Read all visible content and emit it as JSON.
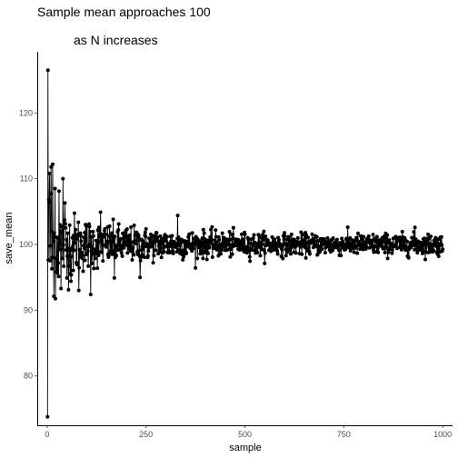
{
  "chart_data": {
    "type": "line",
    "title_line1": "Sample mean approaches 100",
    "title_line2": "as N increases",
    "xlabel": "sample",
    "ylabel": "save_mean",
    "xlim": [
      -25,
      1025
    ],
    "ylim": [
      72.5,
      129.3
    ],
    "x_ticks": [
      0,
      250,
      500,
      750,
      1000
    ],
    "y_ticks": [
      80,
      90,
      100,
      110,
      120
    ],
    "grid": false,
    "markers": true,
    "n_points": 1000,
    "series": [
      {
        "highlighted_points": [
          {
            "x": 1,
            "y": 73.8
          },
          {
            "x": 2,
            "y": 126.5
          },
          {
            "x": 4,
            "y": 106.8
          },
          {
            "x": 6,
            "y": 110.8
          },
          {
            "x": 8,
            "y": 99.8
          },
          {
            "x": 10,
            "y": 111.8
          },
          {
            "x": 12,
            "y": 96.3
          },
          {
            "x": 14,
            "y": 112.2
          },
          {
            "x": 17,
            "y": 92.1
          },
          {
            "x": 20,
            "y": 108.5
          },
          {
            "x": 25,
            "y": 96.1
          },
          {
            "x": 30,
            "y": 108.1
          },
          {
            "x": 35,
            "y": 93.3
          },
          {
            "x": 40,
            "y": 110.0
          },
          {
            "x": 45,
            "y": 106.3
          },
          {
            "x": 50,
            "y": 94.9
          },
          {
            "x": 60,
            "y": 94.4
          },
          {
            "x": 80,
            "y": 93.0
          },
          {
            "x": 95,
            "y": 101.8
          },
          {
            "x": 110,
            "y": 92.4
          },
          {
            "x": 135,
            "y": 104.9
          },
          {
            "x": 170,
            "y": 94.9
          },
          {
            "x": 235,
            "y": 95.0
          },
          {
            "x": 330,
            "y": 104.4
          },
          {
            "x": 930,
            "y": 102.6
          }
        ],
        "noise_sd": 20,
        "center": 100
      }
    ]
  }
}
